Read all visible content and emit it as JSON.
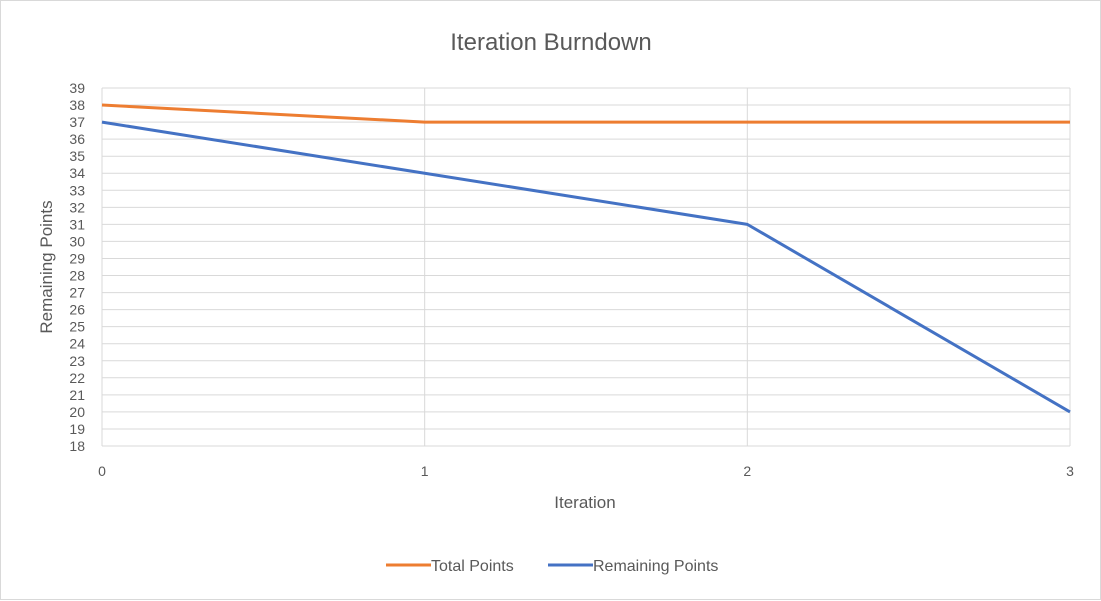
{
  "chart_data": {
    "type": "line",
    "title": "Iteration Burndown",
    "xlabel": "Iteration",
    "ylabel": "Remaining Points",
    "x": [
      0,
      1,
      2,
      3
    ],
    "xlim": [
      0,
      3
    ],
    "ylim": [
      18,
      39
    ],
    "y_step": 1,
    "grid": true,
    "legend_position": "bottom",
    "series": [
      {
        "name": "Total Points",
        "color": "#ED7D31",
        "values": [
          38,
          37,
          37,
          37
        ]
      },
      {
        "name": "Remaining Points",
        "color": "#4472C4",
        "values": [
          37,
          34,
          31,
          20
        ]
      }
    ]
  }
}
